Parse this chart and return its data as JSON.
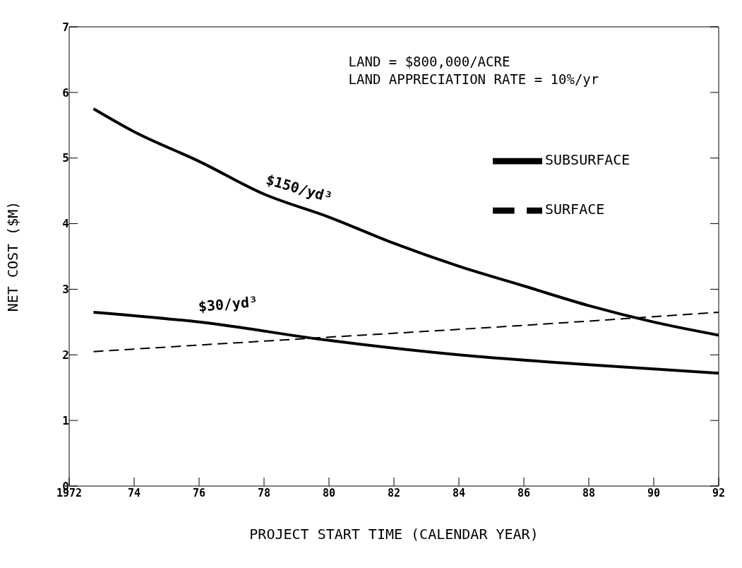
{
  "chart_data": {
    "type": "line",
    "xlabel": "PROJECT START TIME (CALENDAR YEAR)",
    "ylabel": "NET COST ($M)",
    "xlim": [
      1972,
      1992
    ],
    "xticks": [
      1972,
      {
        "value": 1974,
        "label": "74"
      },
      {
        "value": 1976,
        "label": "76"
      },
      {
        "value": 1978,
        "label": "78"
      },
      {
        "value": 1980,
        "label": "80"
      },
      {
        "value": 1982,
        "label": "82"
      },
      {
        "value": 1984,
        "label": "84"
      },
      {
        "value": 1986,
        "label": "86"
      },
      {
        "value": 1988,
        "label": "88"
      },
      {
        "value": 1990,
        "label": "90"
      },
      {
        "value": 1992,
        "label": "92"
      }
    ],
    "ylim": [
      0,
      7
    ],
    "yticks": [
      0,
      1,
      2,
      3,
      4,
      5,
      6,
      7
    ],
    "grid": false,
    "legend": "top right",
    "marker": "none",
    "series": [
      {
        "name": "SUBSURFACE",
        "color": "#000000",
        "line_style": "solid",
        "x": [
          1972.75,
          1974,
          1976,
          1978,
          1980,
          1982,
          1984,
          1986,
          1988,
          1990,
          1992
        ],
        "values": [
          5.75,
          5.4,
          4.95,
          4.45,
          4.1,
          3.7,
          3.35,
          3.05,
          2.75,
          2.5,
          2.3
        ]
      },
      {
        "color": "#000000",
        "line_style": "solid",
        "x": [
          1972.75,
          1976,
          1980,
          1984,
          1988,
          1992
        ],
        "values": [
          2.65,
          2.5,
          2.22,
          2.0,
          1.85,
          1.72
        ]
      },
      {
        "name": "SURFACE",
        "color": "#000000",
        "line_style": "dashed",
        "x": [
          1972.75,
          1980,
          1986,
          1992
        ],
        "values": [
          2.05,
          2.27,
          2.45,
          2.65
        ]
      }
    ],
    "annotations": [
      "LAND = $800,000/ACRE",
      "LAND APPRECIATION RATE = 10%/yr",
      {
        "text": "$150/yd³",
        "x": 1978,
        "y": 4.45
      },
      {
        "text": "$30/yd³",
        "x": 1976,
        "y": 2.5
      }
    ]
  }
}
